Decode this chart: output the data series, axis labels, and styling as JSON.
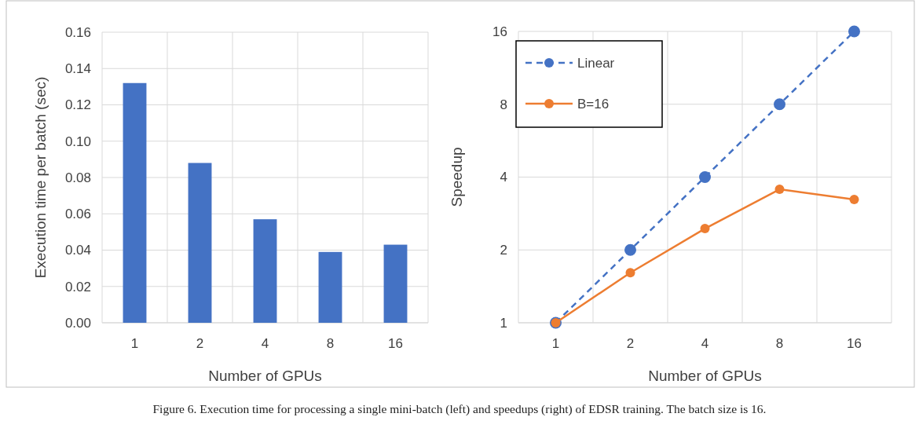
{
  "chart_data": [
    {
      "type": "bar",
      "categories": [
        "1",
        "2",
        "4",
        "8",
        "16"
      ],
      "values": [
        0.132,
        0.088,
        0.057,
        0.039,
        0.043
      ],
      "color": "#4472c4",
      "xlabel": "Number of GPUs",
      "ylabel": "Execution time per batch (sec)",
      "ylim": [
        0,
        0.16
      ],
      "yticks": [
        {
          "value": 0,
          "label": "0.00"
        },
        {
          "value": 0.02,
          "label": "0.02"
        },
        {
          "value": 0.04,
          "label": "0.04"
        },
        {
          "value": 0.06,
          "label": "0.06"
        },
        {
          "value": 0.08,
          "label": "0.08"
        },
        {
          "value": 0.1,
          "label": "0.10"
        },
        {
          "value": 0.12,
          "label": "0.12"
        },
        {
          "value": 0.14,
          "label": "0.14"
        },
        {
          "value": 0.16,
          "label": "0.16"
        }
      ],
      "grid": true,
      "legend": false
    },
    {
      "type": "line",
      "categories": [
        "1",
        "2",
        "4",
        "8",
        "16"
      ],
      "xlabel": "Number of GPUs",
      "ylabel": "Speedup",
      "log": "y",
      "ylim": [
        1,
        16
      ],
      "yticks": [
        1,
        2,
        4,
        8,
        16
      ],
      "grid": true,
      "legend": "top left",
      "marker": "circle",
      "series": [
        {
          "name": "Linear",
          "color": "#4472c4",
          "values": [
            1,
            2,
            4,
            8,
            16
          ],
          "line_style": "dashed"
        },
        {
          "name": "B=16",
          "color": "#ed7d31",
          "values": [
            1,
            1.61,
            2.45,
            3.56,
            3.23
          ],
          "line_style": "solid"
        }
      ],
      "annotations": [
        "Figure 6. Execution time for processing a single mini-batch (left) and speedups (right) of EDSR training. The batch size is 16."
      ]
    }
  ]
}
